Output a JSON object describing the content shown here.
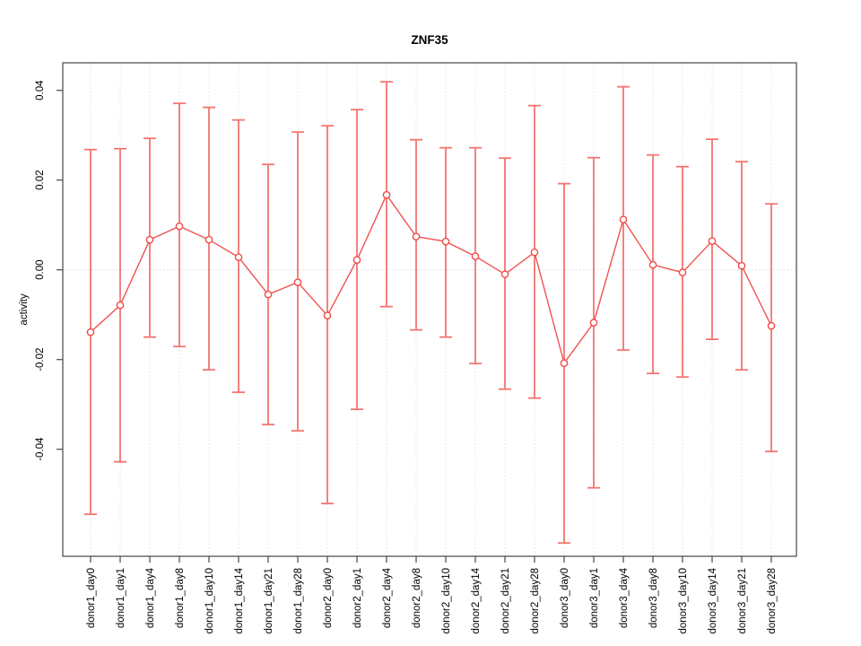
{
  "chart_data": {
    "type": "line",
    "title": "ZNF35",
    "xlabel": "",
    "ylabel": "activity",
    "ylim": [
      -0.064,
      0.046
    ],
    "yticks": [
      0.04,
      0.02,
      0.0,
      -0.02,
      -0.04
    ],
    "ytick_labels": [
      "0.04",
      "0.02",
      "0.00",
      "-0.02",
      "-0.04"
    ],
    "grid": "dotted light-gray vertical line at each category; dotted light-gray horizontal line at y=0",
    "legend": "none",
    "marker": "open-circle",
    "error_bars": true,
    "categories": [
      "donor1_day0",
      "donor1_day1",
      "donor1_day4",
      "donor1_day8",
      "donor1_day10",
      "donor1_day14",
      "donor1_day21",
      "donor1_day28",
      "donor2_day0",
      "donor2_day1",
      "donor2_day4",
      "donor2_day8",
      "donor2_day10",
      "donor2_day14",
      "donor2_day21",
      "donor2_day28",
      "donor3_day0",
      "donor3_day1",
      "donor3_day4",
      "donor3_day8",
      "donor3_day10",
      "donor3_day14",
      "donor3_day21",
      "donor3_day28"
    ],
    "series": [
      {
        "name": "activity",
        "values": [
          -0.0139,
          -0.0079,
          0.0067,
          0.0097,
          0.0067,
          0.0028,
          -0.0055,
          -0.0028,
          -0.0102,
          0.0022,
          0.0167,
          0.0074,
          0.0063,
          0.003,
          -0.001,
          0.0039,
          -0.0208,
          -0.0118,
          0.0112,
          0.0011,
          -0.0006,
          0.0064,
          0.0009,
          -0.0125
        ],
        "lower": [
          -0.0545,
          -0.0428,
          -0.015,
          -0.0171,
          -0.0223,
          -0.0273,
          -0.0345,
          -0.0359,
          -0.0521,
          -0.0311,
          -0.0082,
          -0.0134,
          -0.015,
          -0.0209,
          -0.0266,
          -0.0286,
          -0.0609,
          -0.0486,
          -0.0179,
          -0.0231,
          -0.0239,
          -0.0155,
          -0.0223,
          -0.0405
        ],
        "upper": [
          0.0268,
          0.027,
          0.0293,
          0.0371,
          0.0362,
          0.0334,
          0.0235,
          0.0307,
          0.0321,
          0.0357,
          0.0419,
          0.029,
          0.0272,
          0.0272,
          0.0249,
          0.0366,
          0.0192,
          0.025,
          0.0408,
          0.0256,
          0.023,
          0.0291,
          0.0241,
          0.0147
        ]
      }
    ],
    "colors": {
      "series_line": "#ef5350",
      "error_bar": "#f36561",
      "marker_stroke": "#ef4c46",
      "marker_fill": "#ffffff",
      "gridline": "#e4e4e4",
      "zero_line": "#dcdcdc",
      "axis_box": "#555555",
      "text": "#000000",
      "background": "#ffffff"
    }
  }
}
